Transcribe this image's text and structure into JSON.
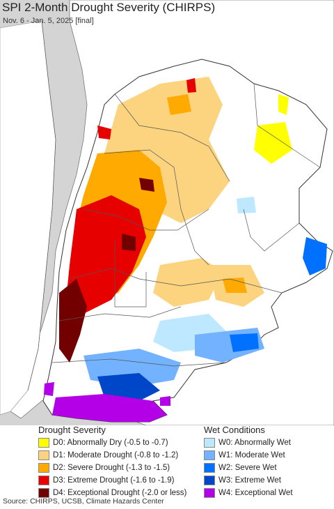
{
  "title": "SPI 2-Month Drought Severity (CHIRPS)",
  "subtitle": "Nov. 6 - Jan. 5, 2025 [final]",
  "legend": {
    "drought_title": "Drought Severity",
    "wet_title": "Wet Conditions",
    "drought": [
      {
        "label": "D0: Abnormally Dry (-0.5 to -0.7)",
        "color": "#ffff00"
      },
      {
        "label": "D1: Moderate Drought (-0.8 to -1.2)",
        "color": "#fcd37f"
      },
      {
        "label": "D2: Severe Drought (-1.3 to -1.5)",
        "color": "#ffaa00"
      },
      {
        "label": "D3: Extreme Drought (-1.6 to -1.9)",
        "color": "#e60000"
      },
      {
        "label": "D4: Exceptional Drought (-2.0 or less)",
        "color": "#730000"
      }
    ],
    "wet": [
      {
        "label": "W0: Abnormally Wet",
        "color": "#bee8ff"
      },
      {
        "label": "W1: Moderate Wet",
        "color": "#73b2ff"
      },
      {
        "label": "W2: Severe Wet",
        "color": "#0070ff"
      },
      {
        "label": "W3: Extreme Wet",
        "color": "#0046c8"
      },
      {
        "label": "W4: Exceptional Wet",
        "color": "#b400e6"
      }
    ]
  },
  "source": "Source: CHIRPS, UCSB, Climate Hazards Center",
  "colors": {
    "ocean": "#d4d4d4",
    "land": "#ffffff",
    "border": "#555555"
  }
}
